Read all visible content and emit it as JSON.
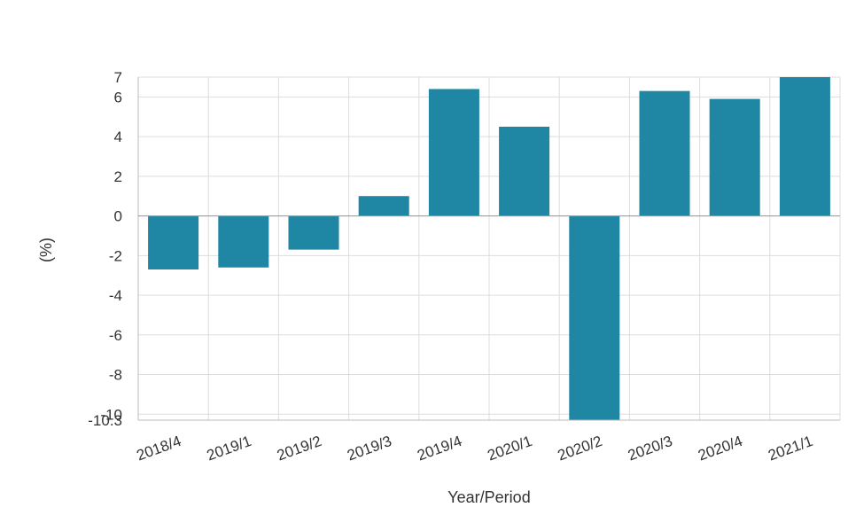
{
  "chart_data": {
    "type": "bar",
    "categories": [
      "2018/4",
      "2019/1",
      "2019/2",
      "2019/3",
      "2019/4",
      "2020/1",
      "2020/2",
      "2020/3",
      "2020/4",
      "2021/1"
    ],
    "series": [
      {
        "values": [
          -2.7,
          -2.6,
          -1.7,
          1.0,
          6.4,
          4.5,
          -10.3,
          6.3,
          5.9,
          7.0
        ]
      }
    ],
    "xlabel": "Year/Period",
    "ylabel": "(%)",
    "ylim": [
      -10.3,
      7
    ],
    "yticks": [
      7,
      6,
      4,
      2,
      0,
      -2,
      -4,
      -6,
      -8,
      -10,
      -10.3
    ],
    "ytick_labels": [
      "7",
      "6",
      "4",
      "2",
      "0",
      "-2",
      "-4",
      "-6",
      "-8",
      "-10",
      "-10.3"
    ],
    "grid": true,
    "bar_color": "#1f87a3"
  }
}
